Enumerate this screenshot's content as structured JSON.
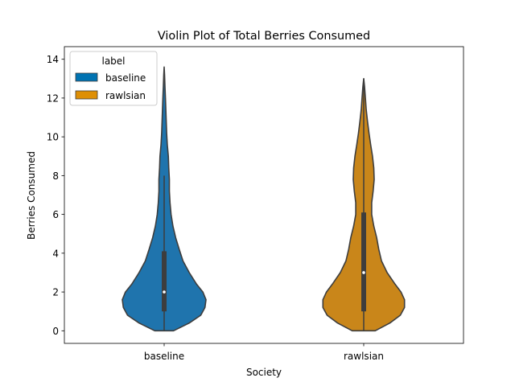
{
  "chart_data": {
    "type": "violin",
    "title": "Violin Plot of Total Berries Consumed",
    "xlabel": "Society",
    "ylabel": "Berries Consumed",
    "categories": [
      "baseline",
      "rawlsian"
    ],
    "ylim": [
      -0.65,
      14.65
    ],
    "yticks": [
      0,
      2,
      4,
      6,
      8,
      10,
      12,
      14
    ],
    "legend": {
      "title": "label",
      "position": "top-left",
      "entries": [
        {
          "label": "baseline",
          "color": "#0173b2"
        },
        {
          "label": "rawlsian",
          "color": "#de8f05"
        }
      ]
    },
    "series": [
      {
        "name": "baseline",
        "color": "#1f74ad",
        "min": 0,
        "q1": 1,
        "median": 2,
        "q3": 4.1,
        "whisker_high": 8,
        "max": 13.6,
        "density": [
          [
            0,
            0.45
          ],
          [
            0.4,
            1.2
          ],
          [
            0.8,
            1.75
          ],
          [
            1.2,
            1.95
          ],
          [
            1.6,
            2.0
          ],
          [
            2.0,
            1.85
          ],
          [
            2.4,
            1.55
          ],
          [
            3.0,
            1.2
          ],
          [
            3.6,
            0.9
          ],
          [
            4.2,
            0.72
          ],
          [
            4.8,
            0.55
          ],
          [
            5.4,
            0.42
          ],
          [
            6.0,
            0.33
          ],
          [
            6.6,
            0.28
          ],
          [
            7.2,
            0.25
          ],
          [
            7.8,
            0.25
          ],
          [
            8.4,
            0.22
          ],
          [
            9.0,
            0.2
          ],
          [
            9.6,
            0.15
          ],
          [
            10.2,
            0.12
          ],
          [
            10.8,
            0.1
          ],
          [
            11.4,
            0.08
          ],
          [
            12.0,
            0.06
          ],
          [
            12.6,
            0.04
          ],
          [
            13.2,
            0.02
          ],
          [
            13.6,
            0
          ]
        ]
      },
      {
        "name": "rawlsian",
        "color": "#c9861a",
        "min": 0,
        "q1": 1,
        "median": 3,
        "q3": 6.1,
        "whisker_high": 13,
        "max": 13,
        "density": [
          [
            0,
            0.55
          ],
          [
            0.4,
            1.25
          ],
          [
            0.8,
            1.75
          ],
          [
            1.2,
            1.95
          ],
          [
            1.6,
            1.95
          ],
          [
            2.0,
            1.78
          ],
          [
            2.4,
            1.5
          ],
          [
            3.0,
            1.12
          ],
          [
            3.6,
            0.85
          ],
          [
            4.2,
            0.72
          ],
          [
            4.8,
            0.62
          ],
          [
            5.4,
            0.48
          ],
          [
            6.0,
            0.38
          ],
          [
            6.6,
            0.38
          ],
          [
            7.2,
            0.45
          ],
          [
            7.8,
            0.5
          ],
          [
            8.4,
            0.48
          ],
          [
            9.0,
            0.42
          ],
          [
            9.6,
            0.33
          ],
          [
            10.2,
            0.25
          ],
          [
            10.8,
            0.18
          ],
          [
            11.4,
            0.12
          ],
          [
            12.0,
            0.08
          ],
          [
            12.6,
            0.04
          ],
          [
            13.0,
            0
          ]
        ]
      }
    ]
  }
}
